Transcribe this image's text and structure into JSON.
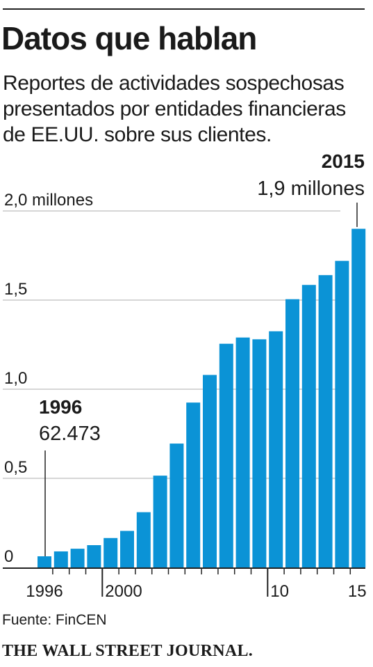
{
  "header": {
    "title": "Datos que hablan",
    "subtitle": "Reportes de actividades sospechosas presentados por entidades financieras de EE.UU. sobre sus clientes."
  },
  "footer": {
    "source": "Fuente: FinCEN",
    "brand": "THE WALL STREET JOURNAL."
  },
  "colors": {
    "bar": "#0b93d6",
    "grid": "#c8c8c8",
    "axis": "#222222",
    "text": "#1a1a1a"
  },
  "chart_data": {
    "type": "bar",
    "title": "Datos que hablan",
    "subtitle": "Reportes de actividades sospechosas presentados por entidades financieras de EE.UU. sobre sus clientes.",
    "unit": "millones",
    "x": [
      1996,
      1997,
      1998,
      1999,
      2000,
      2001,
      2002,
      2003,
      2004,
      2005,
      2006,
      2007,
      2008,
      2009,
      2010,
      2011,
      2012,
      2013,
      2014,
      2015
    ],
    "values": [
      0.062473,
      0.09,
      0.105,
      0.125,
      0.165,
      0.205,
      0.31,
      0.515,
      0.695,
      0.925,
      1.08,
      1.255,
      1.29,
      1.28,
      1.325,
      1.505,
      1.585,
      1.64,
      1.72,
      1.9
    ],
    "ylim": [
      0,
      2.0
    ],
    "yticks": [
      {
        "value": 0,
        "label": "0"
      },
      {
        "value": 0.5,
        "label": "0,5"
      },
      {
        "value": 1.0,
        "label": "1,0"
      },
      {
        "value": 1.5,
        "label": "1,5"
      },
      {
        "value": 2.0,
        "label": "2,0 millones"
      }
    ],
    "xticks": [
      {
        "year": 1996,
        "label": "1996"
      },
      {
        "year": 2000,
        "label": "2000"
      },
      {
        "year": 2010,
        "label": "10"
      },
      {
        "year": 2015,
        "label": "15"
      }
    ],
    "annotations": [
      {
        "year": 1996,
        "title": "1996",
        "value_label": "62.473"
      },
      {
        "year": 2015,
        "title": "2015",
        "value_label": "1,9 millones"
      }
    ],
    "grid": true,
    "legend": "none"
  }
}
